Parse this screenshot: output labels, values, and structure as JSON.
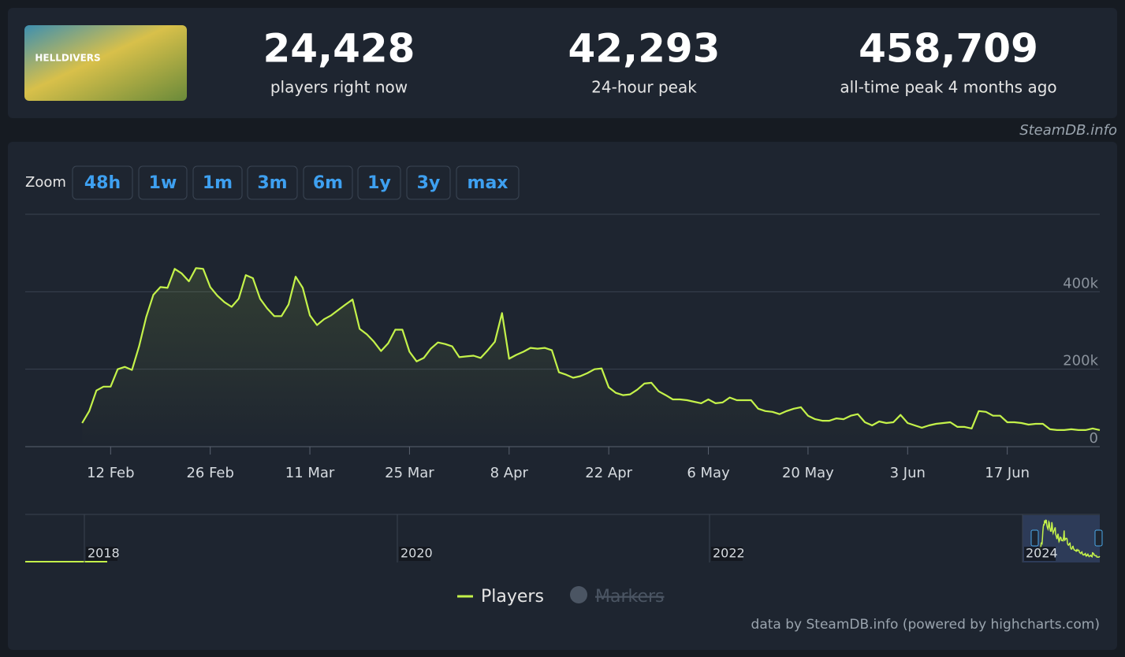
{
  "header": {
    "logo_text": "HELLDIVERS",
    "stats": [
      {
        "value": "24,428",
        "label": "players right now"
      },
      {
        "value": "42,293",
        "label": "24-hour peak"
      },
      {
        "value": "458,709",
        "label": "all-time peak 4 months ago"
      }
    ],
    "source": "SteamDB.info"
  },
  "zoom": {
    "label": "Zoom",
    "buttons": [
      "48h",
      "1w",
      "1m",
      "3m",
      "6m",
      "1y",
      "3y",
      "max"
    ]
  },
  "chart_data": {
    "type": "line",
    "x": [
      "8 Feb",
      "9 Feb",
      "10 Feb",
      "11 Feb",
      "12 Feb",
      "13 Feb",
      "14 Feb",
      "15 Feb",
      "16 Feb",
      "17 Feb",
      "18 Feb",
      "19 Feb",
      "20 Feb",
      "21 Feb",
      "22 Feb",
      "23 Feb",
      "24 Feb",
      "25 Feb",
      "26 Feb",
      "27 Feb",
      "28 Feb",
      "29 Feb",
      "1 Mar",
      "2 Mar",
      "3 Mar",
      "4 Mar",
      "5 Mar",
      "6 Mar",
      "7 Mar",
      "8 Mar",
      "9 Mar",
      "10 Mar",
      "11 Mar",
      "12 Mar",
      "13 Mar",
      "14 Mar",
      "15 Mar",
      "16 Mar",
      "17 Mar",
      "18 Mar",
      "19 Mar",
      "20 Mar",
      "21 Mar",
      "22 Mar",
      "23 Mar",
      "24 Mar",
      "25 Mar",
      "26 Mar",
      "27 Mar",
      "28 Mar",
      "29 Mar",
      "30 Mar",
      "31 Mar",
      "1 Apr",
      "2 Apr",
      "3 Apr",
      "4 Apr",
      "5 Apr",
      "6 Apr",
      "7 Apr",
      "8 Apr",
      "9 Apr",
      "10 Apr",
      "11 Apr",
      "12 Apr",
      "13 Apr",
      "14 Apr",
      "15 Apr",
      "16 Apr",
      "17 Apr",
      "18 Apr",
      "19 Apr",
      "20 Apr",
      "21 Apr",
      "22 Apr",
      "23 Apr",
      "24 Apr",
      "25 Apr",
      "26 Apr",
      "27 Apr",
      "28 Apr",
      "29 Apr",
      "30 Apr",
      "1 May",
      "2 May",
      "3 May",
      "4 May",
      "5 May",
      "6 May",
      "7 May",
      "8 May",
      "9 May",
      "10 May",
      "11 May",
      "12 May",
      "13 May",
      "14 May",
      "15 May",
      "16 May",
      "17 May",
      "18 May",
      "19 May",
      "20 May",
      "21 May",
      "22 May",
      "23 May",
      "24 May",
      "25 May",
      "26 May",
      "27 May",
      "28 May",
      "29 May",
      "30 May",
      "31 May",
      "1 Jun",
      "2 Jun",
      "3 Jun",
      "4 Jun",
      "5 Jun",
      "6 Jun",
      "7 Jun",
      "8 Jun",
      "9 Jun",
      "10 Jun",
      "11 Jun",
      "12 Jun",
      "13 Jun",
      "14 Jun",
      "15 Jun",
      "16 Jun",
      "17 Jun",
      "18 Jun",
      "19 Jun",
      "20 Jun",
      "21 Jun",
      "22 Jun",
      "23 Jun",
      "24 Jun",
      "25 Jun",
      "26 Jun",
      "27 Jun",
      "28 Jun",
      "29 Jun",
      "30 Jun"
    ],
    "series": [
      {
        "name": "Players",
        "color": "#c4f24a",
        "values": [
          61000,
          92000,
          145000,
          155000,
          155000,
          200000,
          206000,
          198000,
          259000,
          335000,
          392000,
          412000,
          410000,
          459000,
          447000,
          427000,
          461000,
          459000,
          412000,
          390000,
          373000,
          361000,
          382000,
          443000,
          435000,
          382000,
          357000,
          337000,
          337000,
          367000,
          439000,
          410000,
          339000,
          314000,
          329000,
          339000,
          353000,
          367000,
          380000,
          304000,
          290000,
          271000,
          247000,
          267000,
          302000,
          302000,
          245000,
          220000,
          229000,
          253000,
          269000,
          265000,
          259000,
          231000,
          233000,
          235000,
          229000,
          249000,
          271000,
          345000,
          227000,
          237000,
          245000,
          255000,
          253000,
          255000,
          249000,
          192000,
          186000,
          178000,
          182000,
          190000,
          200000,
          202000,
          153000,
          139000,
          133000,
          135000,
          147000,
          163000,
          165000,
          143000,
          133000,
          122000,
          122000,
          120000,
          116000,
          112000,
          122000,
          112000,
          114000,
          127000,
          120000,
          120000,
          120000,
          98000,
          92000,
          90000,
          84000,
          92000,
          98000,
          102000,
          80000,
          71000,
          67000,
          67000,
          73000,
          71000,
          80000,
          84000,
          63000,
          55000,
          65000,
          61000,
          63000,
          82000,
          61000,
          55000,
          49000,
          55000,
          59000,
          61000,
          63000,
          51000,
          51000,
          47000,
          92000,
          90000,
          80000,
          80000,
          63000,
          63000,
          61000,
          57000,
          59000,
          59000,
          45000,
          43000,
          43000,
          45000,
          43000,
          43000,
          47000,
          43000
        ]
      }
    ],
    "xlim": [
      "31 Jan",
      "30 Jun"
    ],
    "xticks": [
      "12 Feb",
      "26 Feb",
      "11 Mar",
      "25 Mar",
      "8 Apr",
      "22 Apr",
      "6 May",
      "20 May",
      "3 Jun",
      "17 Jun"
    ],
    "ylim": [
      0,
      600000
    ],
    "yticks": [
      0,
      {
        "value": 200000,
        "label": "200k"
      },
      {
        "value": 400000,
        "label": "400k"
      }
    ],
    "grid": true,
    "legend": [
      "Players",
      "Markers"
    ]
  },
  "navigator": {
    "labels": [
      "2018",
      "2020",
      "2022",
      "2024"
    ]
  },
  "credits": "data by SteamDB.info (powered by highcharts.com)"
}
